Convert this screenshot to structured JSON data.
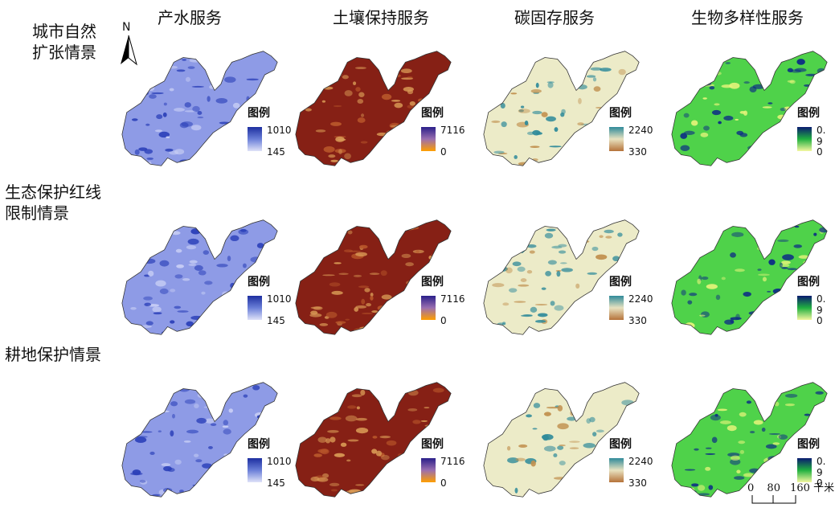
{
  "columns": [
    "产水服务",
    "土壤保持服务",
    "碳固存服务",
    "生物多样性服务"
  ],
  "rows": [
    {
      "line1": "城市自然",
      "line2": "扩张情景"
    },
    {
      "line1": "生态保护红线",
      "line2": "限制情景"
    },
    {
      "line1": "耕地保护情景",
      "line2": ""
    }
  ],
  "north_label": "N",
  "legend_title": "图例",
  "legends": [
    {
      "max": "1010",
      "min": "145",
      "colors": [
        "#1d2fa0",
        "#6a7fd8",
        "#dfe2f8"
      ]
    },
    {
      "max": "7116",
      "min": "0",
      "colors": [
        "#2a1f8a",
        "#9a6fb0",
        "#ff9f00"
      ]
    },
    {
      "max": "2240",
      "min": "330",
      "colors": [
        "#2f8a9a",
        "#e8e2c0",
        "#b5723a"
      ]
    },
    {
      "max": "0. 9",
      "min": "0",
      "colors": [
        "#0a1a70",
        "#20b040",
        "#f4f7a0"
      ]
    }
  ],
  "map_styles": [
    {
      "base": "#8e9be6",
      "spot": "#2a3fb8",
      "light": "#c9cff5"
    },
    {
      "base": "#862015",
      "spot": "#d99a55",
      "light": "#b8562a"
    },
    {
      "base": "#ecebc8",
      "spot": "#2f8a9a",
      "light": "#c1904f"
    },
    {
      "base": "#4fd24a",
      "spot": "#0c2a86",
      "light": "#e6f47a"
    }
  ],
  "scale_bar": {
    "ticks": [
      "0",
      "80",
      "160"
    ],
    "unit": "千米"
  }
}
